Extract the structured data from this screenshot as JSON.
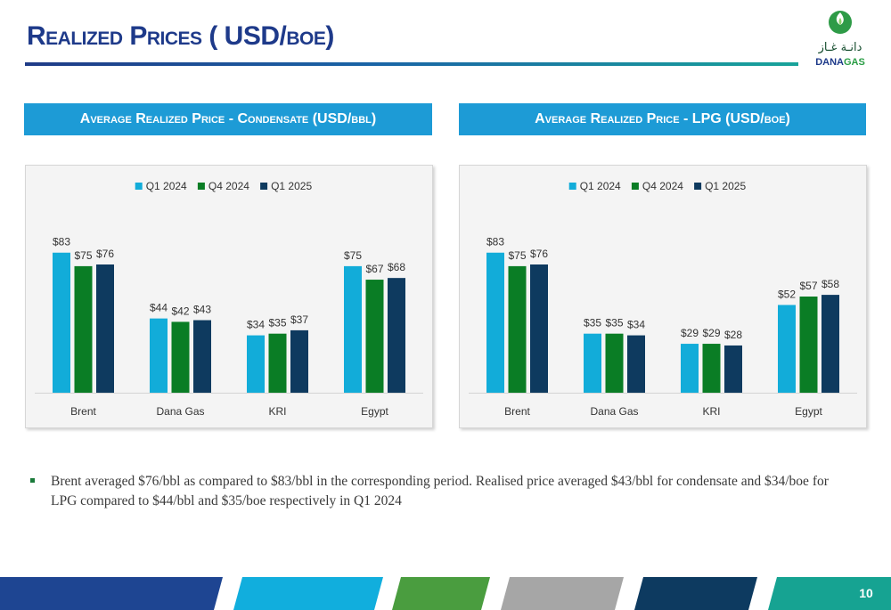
{
  "page": {
    "title": "Realized Prices ( USD/boe)",
    "page_number": "10",
    "logo": {
      "arabic": "دانـة غـاز",
      "english_part1": "DANA",
      "english_part2": "GAS"
    },
    "bullet": "Brent averaged $76/bbl as compared to $83/bbl in the corresponding period. Realised price averaged $43/bbl for condensate and $34/boe for LPG compared to $44/bbl and $35/boe respectively in Q1 2024"
  },
  "colors": {
    "q1_2024": "#12acd9",
    "q4_2024": "#0a7d25",
    "q1_2025": "#0e3a5f",
    "header": "#1d9bd6",
    "title": "#1e3a8a",
    "footer": [
      "#1e4592",
      "#11aedd",
      "#4a9d3f",
      "#a6a6a6",
      "#0d3a60",
      "#16a392"
    ]
  },
  "chart_data": [
    {
      "type": "bar",
      "title": "Average Realized Price - Condensate (USD/bbl)",
      "categories": [
        "Brent",
        "Dana Gas",
        "KRI",
        "Egypt"
      ],
      "series": [
        {
          "name": "Q1 2024",
          "values": [
            83,
            44,
            34,
            75
          ]
        },
        {
          "name": "Q4 2024",
          "values": [
            75,
            42,
            35,
            67
          ]
        },
        {
          "name": "Q1 2025",
          "values": [
            76,
            43,
            37,
            68
          ]
        }
      ],
      "value_prefix": "$",
      "ylim": [
        0,
        95
      ],
      "legend": "top-center",
      "grid": false
    },
    {
      "type": "bar",
      "title": "Average Realized Price - LPG  (USD/boe)",
      "categories": [
        "Brent",
        "Dana Gas",
        "KRI",
        "Egypt"
      ],
      "series": [
        {
          "name": "Q1 2024",
          "values": [
            83,
            35,
            29,
            52
          ]
        },
        {
          "name": "Q4 2024",
          "values": [
            75,
            35,
            29,
            57
          ]
        },
        {
          "name": "Q1 2025",
          "values": [
            76,
            34,
            28,
            58
          ]
        }
      ],
      "value_prefix": "$",
      "ylim": [
        0,
        95
      ],
      "legend": "top-center",
      "grid": false
    }
  ]
}
